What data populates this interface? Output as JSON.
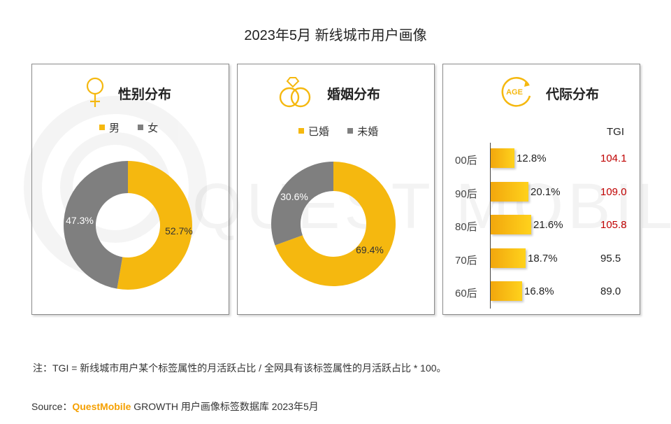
{
  "title": "2023年5月 新线城市用户画像",
  "watermark": "QUEST MOBILE",
  "colors": {
    "primary": "#f5b80f",
    "secondary": "#7f7f7f",
    "tgi_high": "#c00000",
    "tgi_normal": "#222222"
  },
  "chart_data": [
    {
      "type": "pie",
      "title": "性别分布",
      "icon": "female-symbol-icon",
      "donut": true,
      "slices": [
        {
          "label": "男",
          "value": 52.7,
          "display": "52.7%",
          "color": "#f5b80f"
        },
        {
          "label": "女",
          "value": 47.3,
          "display": "47.3%",
          "color": "#7f7f7f"
        }
      ]
    },
    {
      "type": "pie",
      "title": "婚姻分布",
      "icon": "wedding-rings-icon",
      "donut": true,
      "slices": [
        {
          "label": "已婚",
          "value": 69.4,
          "display": "69.4%",
          "color": "#f5b80f"
        },
        {
          "label": "未婚",
          "value": 30.6,
          "display": "30.6%",
          "color": "#7f7f7f"
        }
      ]
    },
    {
      "type": "bar",
      "orientation": "horizontal",
      "title": "代际分布",
      "icon": "age-cycle-icon",
      "icon_text": "AGE",
      "tgi_header": "TGI",
      "categories": [
        "00后",
        "90后",
        "80后",
        "70后",
        "60后"
      ],
      "values": [
        12.8,
        20.1,
        21.6,
        18.7,
        16.8
      ],
      "labels": [
        "12.8%",
        "20.1%",
        "21.6%",
        "18.7%",
        "16.8%"
      ],
      "tgi": [
        "104.1",
        "109.0",
        "105.8",
        "95.5",
        "89.0"
      ],
      "tgi_highlight": [
        true,
        true,
        true,
        false,
        false
      ]
    }
  ],
  "note": "注：TGI = 新线城市用户某个标签属性的月活跃占比 / 全网具有该标签属性的月活跃占比 * 100。",
  "source": {
    "prefix": "Source：",
    "brand": "QuestMobile",
    "text": " GROWTH 用户画像标签数据库 2023年5月"
  }
}
